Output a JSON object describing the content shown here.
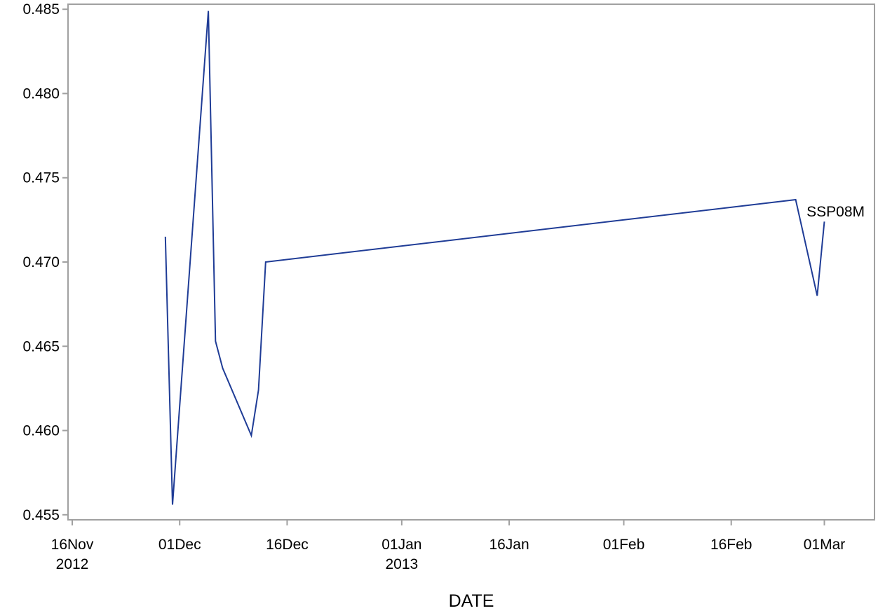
{
  "chart_data": {
    "type": "line",
    "title": "",
    "xlabel": "DATE",
    "ylabel": "",
    "xlim": [
      "2012-11-16",
      "2013-03-08"
    ],
    "ylim": [
      0.4547,
      0.4853
    ],
    "grid": false,
    "x_ticks": [
      {
        "date": "2012-11-16",
        "label": "16Nov",
        "sublabel": "2012"
      },
      {
        "date": "2012-12-01",
        "label": "01Dec",
        "sublabel": ""
      },
      {
        "date": "2012-12-16",
        "label": "16Dec",
        "sublabel": ""
      },
      {
        "date": "2013-01-01",
        "label": "01Jan",
        "sublabel": "2013"
      },
      {
        "date": "2013-01-16",
        "label": "16Jan",
        "sublabel": ""
      },
      {
        "date": "2013-02-01",
        "label": "01Feb",
        "sublabel": ""
      },
      {
        "date": "2013-02-16",
        "label": "16Feb",
        "sublabel": ""
      },
      {
        "date": "2013-03-01",
        "label": "01Mar",
        "sublabel": ""
      }
    ],
    "y_ticks": [
      {
        "value": 0.455,
        "label": "0.455"
      },
      {
        "value": 0.46,
        "label": "0.460"
      },
      {
        "value": 0.465,
        "label": "0.465"
      },
      {
        "value": 0.47,
        "label": "0.470"
      },
      {
        "value": 0.475,
        "label": "0.475"
      },
      {
        "value": 0.48,
        "label": "0.480"
      },
      {
        "value": 0.485,
        "label": "0.485"
      }
    ],
    "series": [
      {
        "name": "SSP08M",
        "color": "#1f3c96",
        "points": [
          {
            "x": "2012-11-29",
            "y": 0.4715
          },
          {
            "x": "2012-11-30",
            "y": 0.4556
          },
          {
            "x": "2012-12-05",
            "y": 0.4849
          },
          {
            "x": "2012-12-06",
            "y": 0.4653
          },
          {
            "x": "2012-12-07",
            "y": 0.4637
          },
          {
            "x": "2012-12-11",
            "y": 0.4597
          },
          {
            "x": "2012-12-12",
            "y": 0.4624
          },
          {
            "x": "2012-12-13",
            "y": 0.47
          },
          {
            "x": "2013-02-25",
            "y": 0.4737
          },
          {
            "x": "2013-02-28",
            "y": 0.468
          },
          {
            "x": "2013-03-01",
            "y": 0.4724
          }
        ]
      }
    ]
  }
}
